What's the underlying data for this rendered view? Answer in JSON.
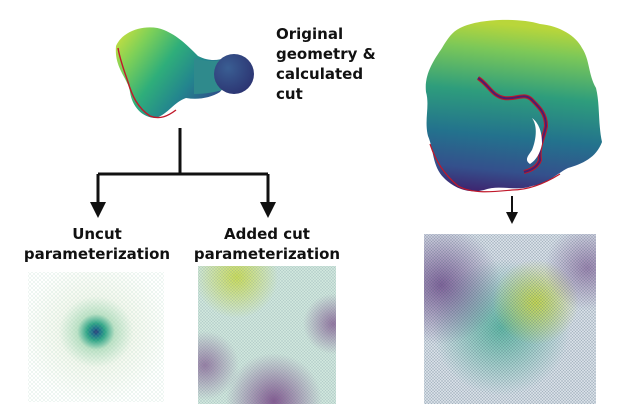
{
  "original_label": {
    "lines": [
      "Original",
      "geometry &",
      "calculated",
      "cut"
    ]
  },
  "uncut_label": {
    "lines": [
      "Uncut",
      "parameterization"
    ]
  },
  "added_cut_label": {
    "lines": [
      "Added cut",
      "parameterization"
    ]
  },
  "colors": {
    "viridis_dark": "#440154",
    "viridis_blue": "#31688e",
    "viridis_teal": "#21918c",
    "viridis_green": "#35b779",
    "viridis_yellow": "#fde725",
    "cut_line": "#c0182a",
    "arrow": "#111111"
  }
}
